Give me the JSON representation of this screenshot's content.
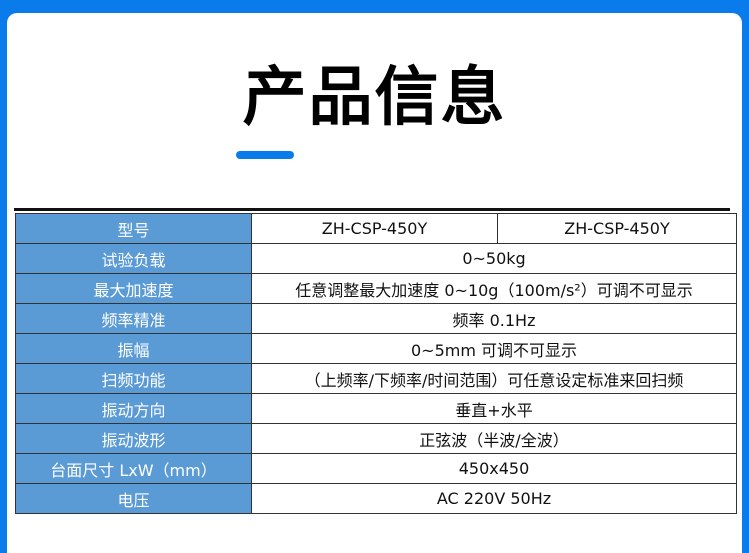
{
  "title": "产品信息",
  "colors": {
    "frame": "#0a7bea",
    "label_bg": "#5b9bd5"
  },
  "rows": [
    {
      "label": "型号",
      "values": [
        "ZH-CSP-450Y",
        "ZH-CSP-450Y"
      ]
    },
    {
      "label": "试验负载",
      "value": "0~50kg"
    },
    {
      "label": "最大加速度",
      "value": "任意调整最大加速度 0~10g（100m/s²）可调不可显示"
    },
    {
      "label": "频率精准",
      "value": "频率 0.1Hz"
    },
    {
      "label": "振幅",
      "value": "0~5mm 可调不可显示"
    },
    {
      "label": "扫频功能",
      "value": "（上频率/下频率/时间范围）可任意设定标准来回扫频"
    },
    {
      "label": "振动方向",
      "value": "垂直+水平"
    },
    {
      "label": "振动波形",
      "value": "正弦波（半波/全波）"
    },
    {
      "label": "台面尺寸 LxW（mm）",
      "value": "450x450"
    },
    {
      "label": "电压",
      "value": "AC 220V 50Hz"
    }
  ]
}
